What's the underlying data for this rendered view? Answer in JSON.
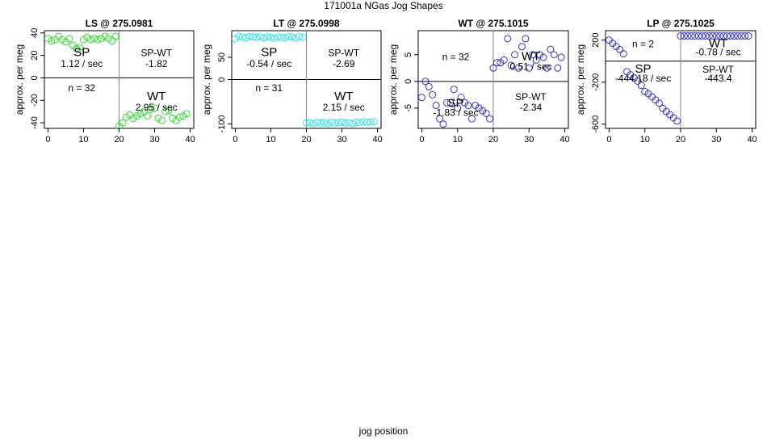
{
  "page_title": "171001a   NGas Jog Shapes",
  "global_xlabel": "jog position",
  "chart_data": [
    {
      "type": "scatter",
      "title": "LS @ 275.0981",
      "ylabel": "approx. per meg",
      "xlim": [
        -1,
        41
      ],
      "ylim": [
        -45,
        42
      ],
      "xticks": [
        0,
        10,
        20,
        30,
        40
      ],
      "yticks": [
        -40,
        -20,
        0,
        20,
        40
      ],
      "color": "#33dd33",
      "hline": 0,
      "vline": 20,
      "annotations": {
        "sp_label": "SP",
        "sp_rate": "1.12 / sec",
        "spwt_label": "SP-WT",
        "spwt_value": "-1.82",
        "n_label": "n = 32",
        "wt_label": "WT",
        "wt_rate": "2.95 / sec"
      },
      "x": [
        0,
        1,
        2,
        3,
        4,
        5,
        6,
        7,
        8,
        9,
        10,
        11,
        12,
        13,
        14,
        15,
        16,
        17,
        18,
        19,
        20,
        21,
        22,
        23,
        24,
        25,
        26,
        27,
        28,
        29,
        30,
        31,
        32,
        33,
        34,
        35,
        36,
        37,
        38,
        39
      ],
      "y": [
        35,
        33,
        34,
        37,
        34,
        32,
        35,
        29,
        26,
        27,
        34,
        36,
        34,
        35,
        34,
        35,
        37,
        35,
        33,
        37,
        -43,
        -40,
        -35,
        -33,
        -36,
        -34,
        -32,
        -30,
        -34,
        -28,
        -27,
        -36,
        -38,
        -30,
        -29,
        -36,
        -38,
        -35,
        -34,
        -32
      ]
    },
    {
      "type": "scatter",
      "title": "LT @ 275.0998",
      "ylabel": "approx. per meg",
      "xlim": [
        -1,
        41
      ],
      "ylim": [
        -110,
        110
      ],
      "xticks": [
        0,
        10,
        20,
        30,
        40
      ],
      "yticks": [
        -100,
        0,
        50
      ],
      "color": "#33e5e5",
      "hline": 0,
      "vline": 20,
      "annotations": {
        "sp_label": "SP",
        "sp_rate": "-0.54 / sec",
        "spwt_label": "SP-WT",
        "spwt_value": "-2.69",
        "n_label": "n = 31",
        "wt_label": "WT",
        "wt_rate": "2.15 / sec"
      },
      "x": [
        0,
        1,
        2,
        3,
        4,
        5,
        6,
        7,
        8,
        9,
        10,
        11,
        12,
        13,
        14,
        15,
        16,
        17,
        18,
        19,
        20,
        21,
        22,
        23,
        24,
        25,
        26,
        27,
        28,
        29,
        30,
        31,
        32,
        33,
        34,
        35,
        36,
        37,
        38,
        39
      ],
      "y": [
        92,
        97,
        96,
        94,
        97,
        96,
        95,
        96,
        94,
        96,
        95,
        93,
        96,
        95,
        94,
        97,
        96,
        93,
        97,
        95,
        -98,
        -97,
        -99,
        -96,
        -98,
        -97,
        -99,
        -96,
        -98,
        -97,
        -96,
        -98,
        -97,
        -99,
        -96,
        -97,
        -95,
        -96,
        -96,
        -95
      ]
    },
    {
      "type": "scatter",
      "title": "WT @ 275.1015",
      "ylabel": "approx. per meg",
      "xlim": [
        -1,
        41
      ],
      "ylim": [
        -8.8,
        9.5
      ],
      "xticks": [
        0,
        10,
        20,
        30,
        40
      ],
      "yticks": [
        -5,
        0,
        5
      ],
      "color": "#3333cc",
      "hline": 0,
      "vline": 20,
      "annotations": {
        "sp_label": "SP",
        "sp_rate": "-1.83 / sec",
        "spwt_label": "SP-WT",
        "spwt_value": "-2.34",
        "n_label": "n = 32",
        "wt_label": "WT",
        "wt_rate": "0.51 / sec"
      },
      "x": [
        0,
        1,
        2,
        3,
        4,
        5,
        6,
        7,
        8,
        9,
        10,
        11,
        12,
        13,
        14,
        15,
        16,
        17,
        18,
        19,
        20,
        21,
        22,
        23,
        24,
        25,
        26,
        27,
        28,
        29,
        30,
        31,
        32,
        33,
        34,
        35,
        36,
        37,
        38,
        39
      ],
      "y": [
        -3,
        0,
        -1,
        -2.5,
        -4.5,
        -7,
        -8,
        -4,
        -4,
        -1.5,
        -5,
        -3,
        -4,
        -4.5,
        -7,
        -4.5,
        -5,
        -5.5,
        -6,
        -7,
        2.5,
        3.5,
        3.5,
        4,
        8,
        3,
        5,
        2.5,
        6.5,
        8,
        2.5,
        5,
        4,
        5,
        4.5,
        2.5,
        6,
        5,
        2.5,
        4.5
      ]
    },
    {
      "type": "scatter",
      "title": "LP @ 275.1025",
      "ylabel": "approx. per meg",
      "xlim": [
        -1,
        41
      ],
      "ylim": [
        -640,
        290
      ],
      "xticks": [
        0,
        10,
        20,
        30,
        40
      ],
      "yticks": [
        -600,
        -200,
        200
      ],
      "color": "#3333cc",
      "hline": 0,
      "vline": 20,
      "annotations": {
        "sp_label": "SP",
        "sp_rate": "-444.18 / sec",
        "spwt_label": "SP-WT",
        "spwt_value": "-443.4",
        "n_label": "n = 2",
        "wt_label": "WT",
        "wt_rate": "-0.78 / sec"
      },
      "x": [
        0,
        1,
        2,
        3,
        4,
        5,
        6,
        7,
        8,
        9,
        10,
        11,
        12,
        13,
        14,
        15,
        16,
        17,
        18,
        19,
        20,
        21,
        22,
        23,
        24,
        25,
        26,
        27,
        28,
        29,
        30,
        31,
        32,
        33,
        34,
        35,
        36,
        37,
        38,
        39
      ],
      "y": [
        200,
        170,
        140,
        110,
        70,
        -100,
        -130,
        -160,
        -190,
        -230,
        -290,
        -310,
        -340,
        -370,
        -400,
        -450,
        -480,
        -510,
        -540,
        -570,
        240,
        240,
        240,
        240,
        240,
        240,
        240,
        240,
        240,
        240,
        240,
        240,
        240,
        240,
        240,
        240,
        240,
        240,
        240,
        240
      ]
    }
  ]
}
